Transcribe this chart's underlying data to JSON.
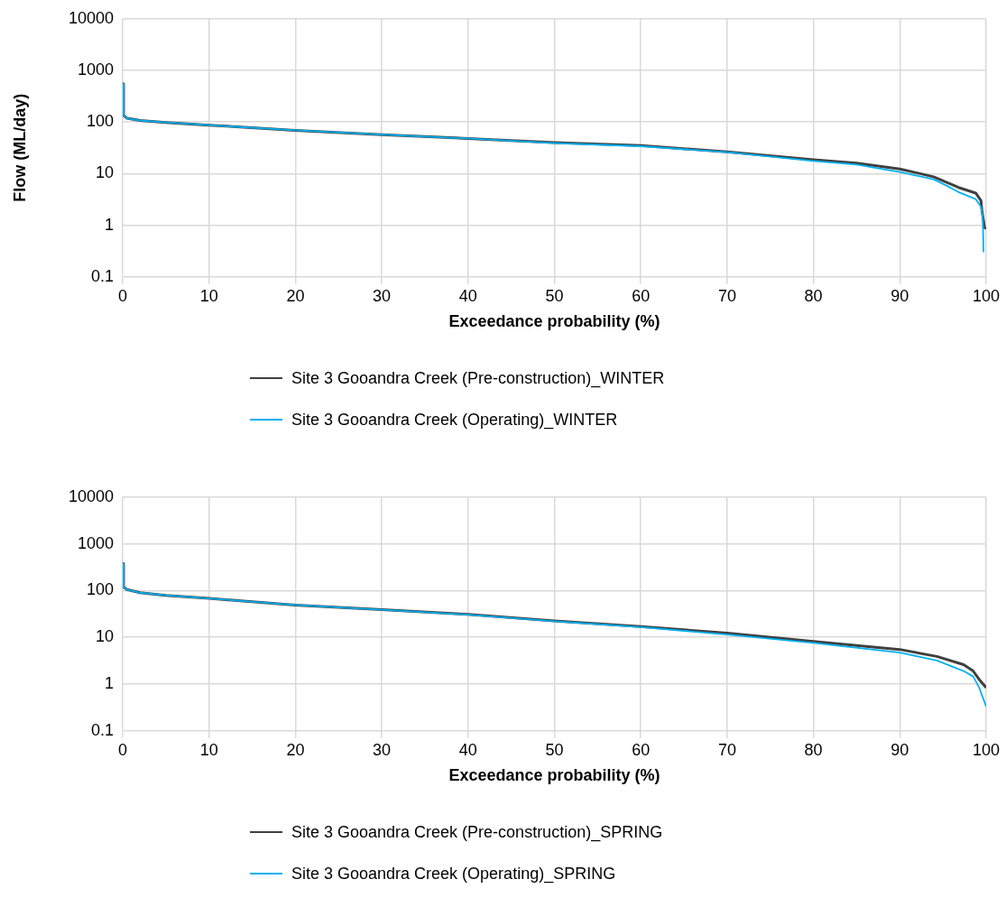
{
  "chart_data": [
    {
      "type": "line",
      "ylabel": "Flow (ML/day)",
      "xlabel": "Exceedance probability (%)",
      "log": "y",
      "xlim": [
        0,
        100
      ],
      "xticks": [
        0,
        10,
        20,
        30,
        40,
        50,
        60,
        70,
        80,
        90,
        100
      ],
      "ylim": [
        0.1,
        10000
      ],
      "yticks": [
        0.1,
        1,
        10,
        100,
        1000,
        10000
      ],
      "grid": true,
      "legend": "bottom",
      "marker": "none",
      "line_style": "solid",
      "series": [
        {
          "name": "Site 3 Gooandra Creek (Pre-construction)_WINTER",
          "color": "#404040",
          "x": [
            0,
            0.1,
            0.5,
            2,
            5,
            10,
            20,
            30,
            40,
            50,
            60,
            70,
            80,
            85,
            90,
            93.9,
            96.8,
            98.8,
            99.4,
            99.5,
            99.7,
            99.8,
            100
          ],
          "values": [
            550,
            134,
            118,
            107,
            98,
            87,
            69,
            57,
            48,
            40,
            35,
            26.5,
            18.6,
            16,
            12.3,
            8.7,
            5.4,
            4.2,
            3,
            2,
            1.2,
            0.9,
            0.87
          ]
        },
        {
          "name": "Site 3 Gooandra Creek (Operating)_WINTER",
          "color": "#00b0f0",
          "x": [
            0,
            0.1,
            0.5,
            2,
            5,
            10,
            20,
            30,
            40,
            50,
            60,
            70,
            80,
            85,
            90,
            93.9,
            95.3,
            96.8,
            98.8,
            99.4,
            99.6,
            99.7
          ],
          "values": [
            550,
            134,
            118,
            107,
            98,
            87,
            69,
            57,
            48,
            39,
            34,
            26,
            17.6,
            15,
            10.7,
            7.8,
            6,
            4.4,
            3.2,
            2.3,
            1.5,
            0.3
          ]
        }
      ]
    },
    {
      "type": "line",
      "xlabel": "Exceedance probability (%)",
      "log": "y",
      "xlim": [
        0,
        100
      ],
      "xticks": [
        0,
        10,
        20,
        30,
        40,
        50,
        60,
        70,
        80,
        90,
        100
      ],
      "ylim": [
        0.1,
        10000
      ],
      "yticks": [
        0.1,
        1,
        10,
        100,
        1000,
        10000
      ],
      "grid": true,
      "legend": "bottom",
      "marker": "none",
      "line_style": "solid",
      "series": [
        {
          "name": "Site 3 Gooandra Creek (Pre-construction)_SPRING",
          "color": "#404040",
          "x": [
            0,
            0.1,
            0.5,
            2,
            5,
            10,
            20,
            30,
            40,
            50,
            60,
            70,
            80,
            90,
            94.3,
            97.4,
            98.5,
            99.2,
            100
          ],
          "values": [
            376,
            119,
            105,
            90,
            79,
            68,
            49,
            39,
            31,
            22.5,
            17,
            12.3,
            8.2,
            5.5,
            3.9,
            2.6,
            1.9,
            1.25,
            0.84
          ]
        },
        {
          "name": "Site 3 Gooandra Creek (Operating)_SPRING",
          "color": "#00b0f0",
          "x": [
            0,
            0.1,
            0.5,
            2,
            5,
            10,
            20,
            30,
            40,
            50,
            60,
            70,
            80,
            90,
            94.3,
            97.4,
            98.5,
            99.2,
            100
          ],
          "values": [
            376,
            119,
            105,
            90,
            79,
            68,
            49,
            39,
            30.5,
            22,
            16.5,
            11.5,
            7.6,
            4.7,
            3.2,
            1.9,
            1.45,
            0.84,
            0.33
          ]
        }
      ]
    }
  ]
}
